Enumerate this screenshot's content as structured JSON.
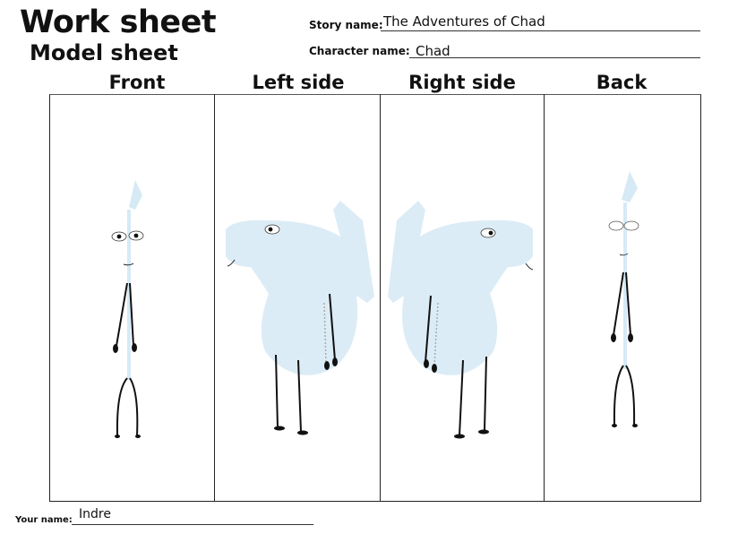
{
  "header": {
    "title": "Work sheet",
    "subtitle": "Model sheet"
  },
  "fields": {
    "story_name_label": "Story name:",
    "story_name_value": "The Adventures of Chad",
    "character_name_label": "Character name:",
    "character_name_value": "Chad",
    "your_name_label": "Your name:",
    "your_name_value": "Indre"
  },
  "columns": [
    {
      "label": "Front"
    },
    {
      "label": "Left side"
    },
    {
      "label": "Right side"
    },
    {
      "label": "Back"
    }
  ],
  "colors": {
    "body_fill": "#dcecf6",
    "ink": "#111111"
  }
}
